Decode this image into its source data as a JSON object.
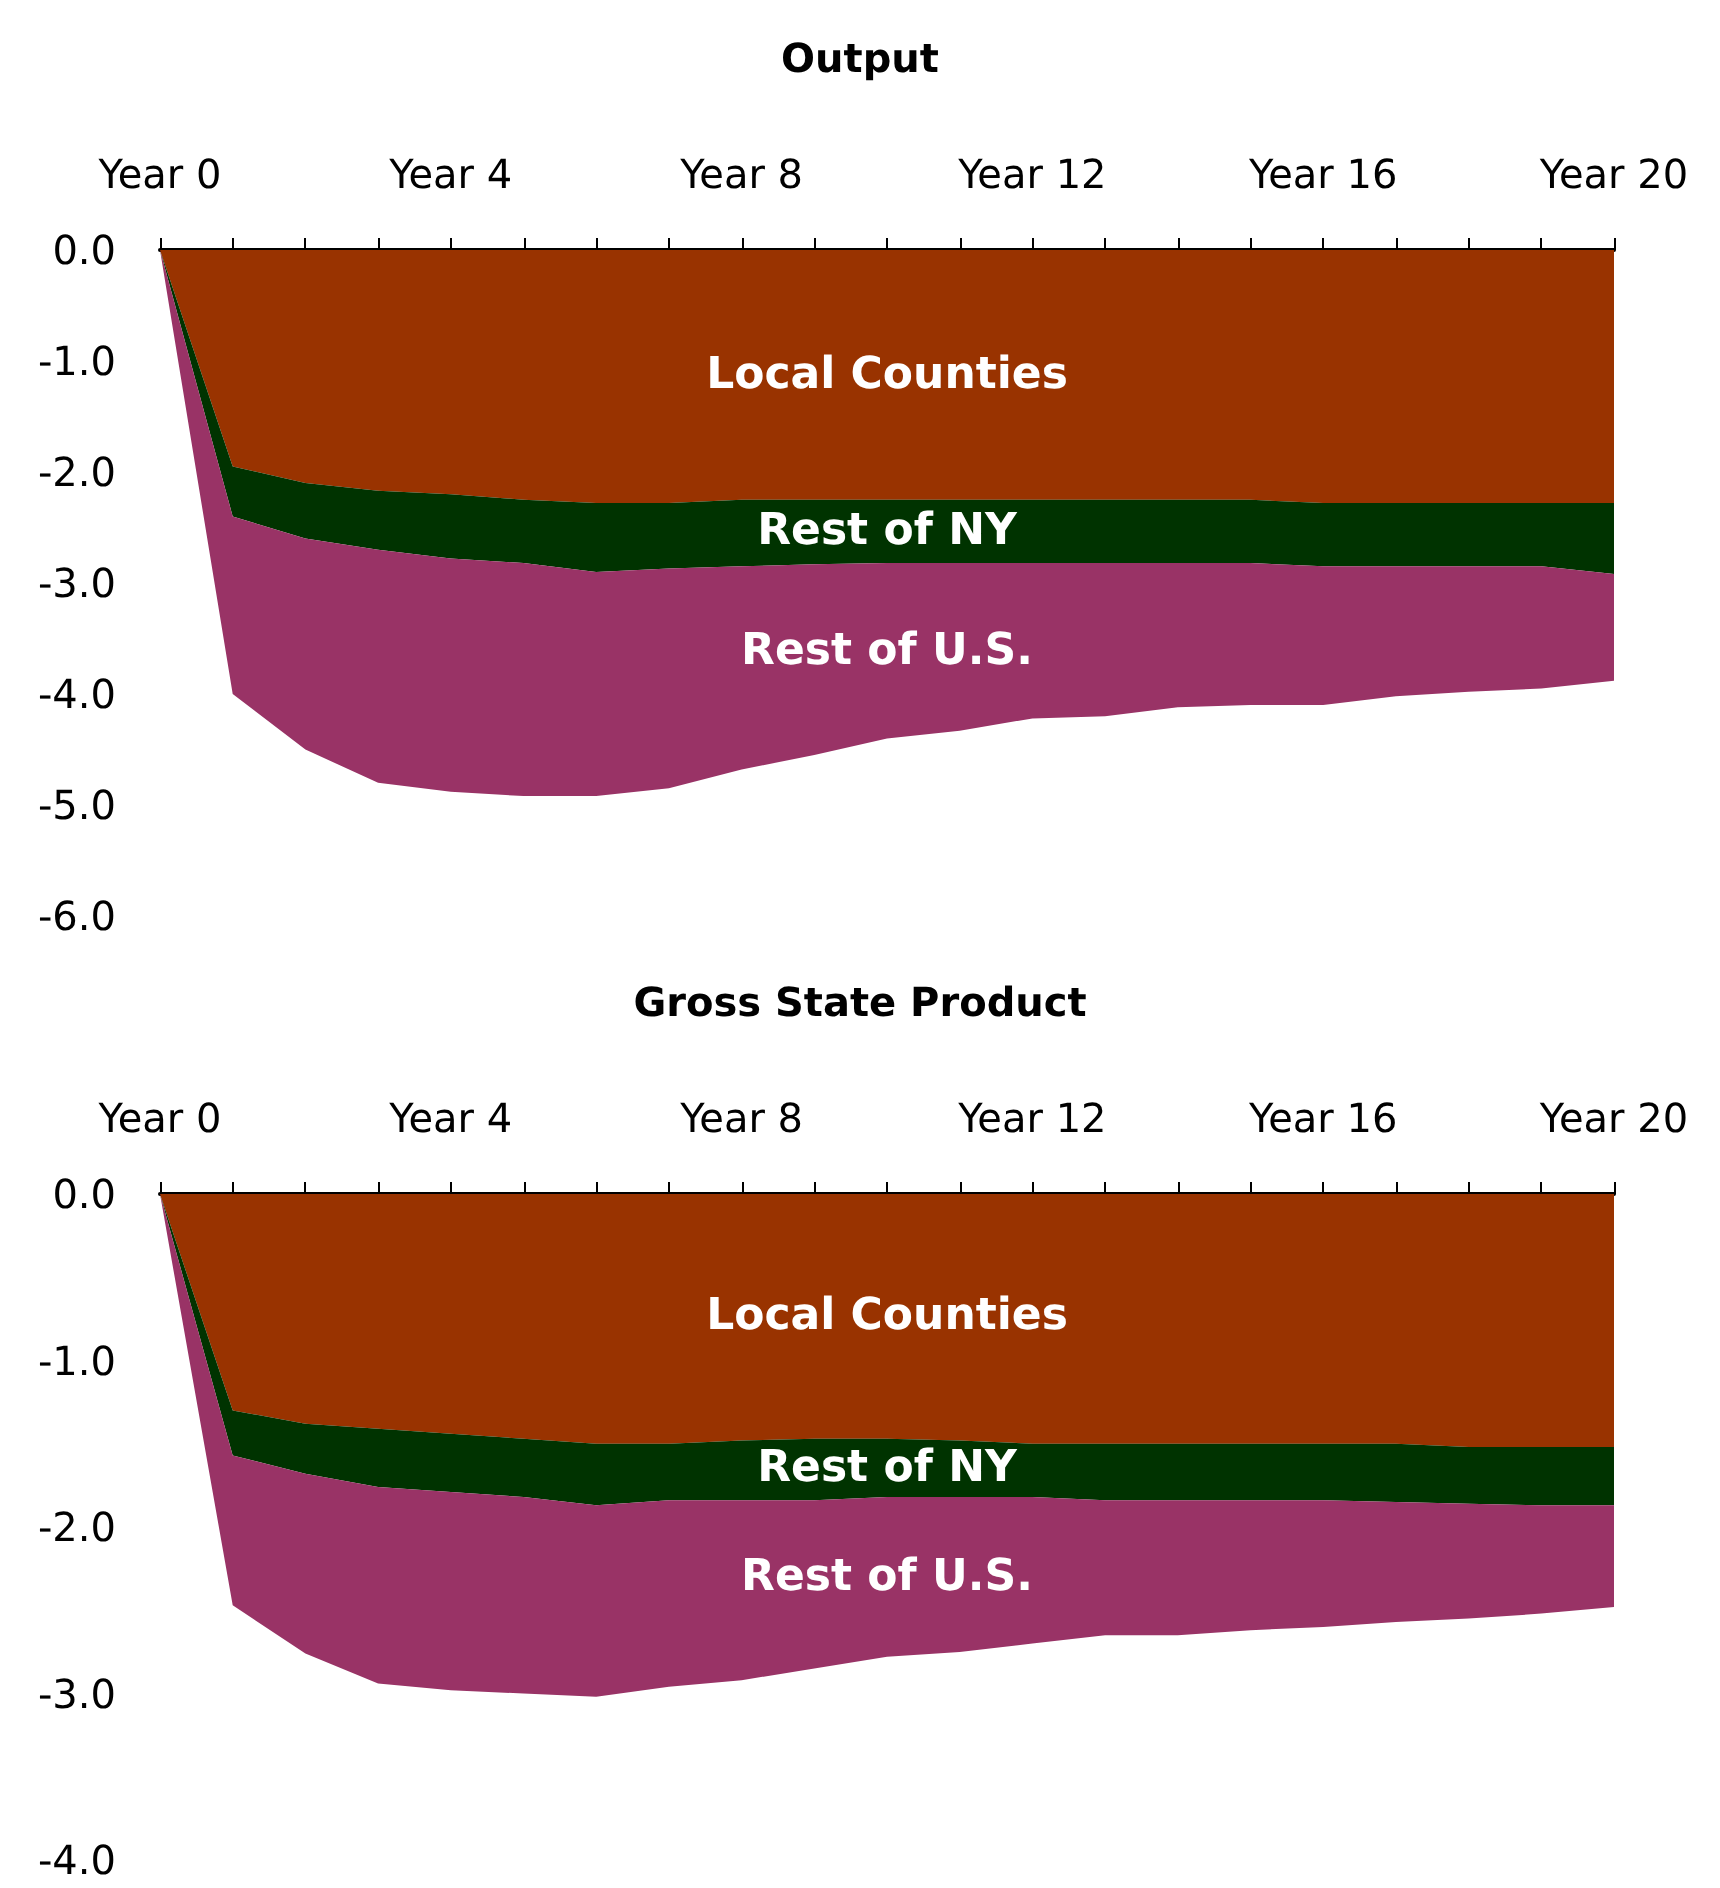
{
  "chart_data": [
    {
      "type": "area",
      "title": "Output",
      "stacked": true,
      "legend": false,
      "grid": false,
      "marker": "none",
      "categories": [
        "Year 0",
        null,
        null,
        null,
        "Year 4",
        null,
        null,
        null,
        "Year 8",
        null,
        null,
        null,
        "Year 12",
        null,
        null,
        null,
        "Year 16",
        null,
        null,
        null,
        "Year 20"
      ],
      "ylim": [
        -6,
        0
      ],
      "yticks": [
        {
          "value": 0,
          "label": "0.0"
        },
        {
          "value": -1,
          "label": "-1.0"
        },
        {
          "value": -2,
          "label": "-2.0"
        },
        {
          "value": -3,
          "label": "-3.0"
        },
        {
          "value": -4,
          "label": "-4.0"
        },
        {
          "value": -5,
          "label": "-5.0"
        },
        {
          "value": -6,
          "label": "-6.0"
        }
      ],
      "series": [
        {
          "name": "Local Counties",
          "color": "#993300",
          "values": [
            0,
            -1.95,
            -2.1,
            -2.17,
            -2.2,
            -2.25,
            -2.28,
            -2.28,
            -2.25,
            -2.25,
            -2.25,
            -2.25,
            -2.25,
            -2.25,
            -2.25,
            -2.25,
            -2.28,
            -2.28,
            -2.28,
            -2.28,
            -2.28
          ]
        },
        {
          "name": "Rest of NY",
          "color": "#003300",
          "values": [
            0,
            -0.45,
            -0.5,
            -0.53,
            -0.58,
            -0.57,
            -0.62,
            -0.59,
            -0.6,
            -0.58,
            -0.57,
            -0.57,
            -0.57,
            -0.57,
            -0.57,
            -0.57,
            -0.57,
            -0.57,
            -0.57,
            -0.57,
            -0.64
          ]
        },
        {
          "name": "Rest of U.S.",
          "color": "#993366",
          "values": [
            0,
            -1.6,
            -1.9,
            -2.1,
            -2.1,
            -2.1,
            -2.02,
            -1.98,
            -1.83,
            -1.72,
            -1.58,
            -1.51,
            -1.4,
            -1.38,
            -1.3,
            -1.28,
            -1.25,
            -1.17,
            -1.13,
            -1.1,
            -0.96
          ]
        }
      ]
    },
    {
      "type": "area",
      "title": "Gross State Product",
      "stacked": true,
      "legend": false,
      "grid": false,
      "marker": "none",
      "categories": [
        "Year 0",
        null,
        null,
        null,
        "Year 4",
        null,
        null,
        null,
        "Year 8",
        null,
        null,
        null,
        "Year 12",
        null,
        null,
        null,
        "Year 16",
        null,
        null,
        null,
        "Year 20"
      ],
      "ylim": [
        -4,
        0
      ],
      "yticks": [
        {
          "value": 0,
          "label": "0.0"
        },
        {
          "value": -1,
          "label": "-1.0"
        },
        {
          "value": -2,
          "label": "-2.0"
        },
        {
          "value": -3,
          "label": "-3.0"
        },
        {
          "value": -4,
          "label": "-4.0"
        }
      ],
      "series": [
        {
          "name": "Local Counties",
          "color": "#993300",
          "values": [
            0,
            -1.3,
            -1.38,
            -1.41,
            -1.44,
            -1.47,
            -1.5,
            -1.5,
            -1.48,
            -1.47,
            -1.47,
            -1.48,
            -1.5,
            -1.5,
            -1.5,
            -1.5,
            -1.5,
            -1.5,
            -1.52,
            -1.52,
            -1.52
          ]
        },
        {
          "name": "Rest of NY",
          "color": "#003300",
          "values": [
            0,
            -0.27,
            -0.3,
            -0.35,
            -0.35,
            -0.35,
            -0.37,
            -0.34,
            -0.36,
            -0.37,
            -0.35,
            -0.34,
            -0.32,
            -0.34,
            -0.34,
            -0.34,
            -0.34,
            -0.35,
            -0.34,
            -0.35,
            -0.35
          ]
        },
        {
          "name": "Rest of U.S.",
          "color": "#993366",
          "values": [
            0,
            -0.9,
            -1.08,
            -1.18,
            -1.19,
            -1.18,
            -1.15,
            -1.12,
            -1.08,
            -1.01,
            -0.96,
            -0.93,
            -0.88,
            -0.81,
            -0.81,
            -0.78,
            -0.76,
            -0.72,
            -0.69,
            -0.65,
            -0.61
          ]
        }
      ]
    }
  ]
}
